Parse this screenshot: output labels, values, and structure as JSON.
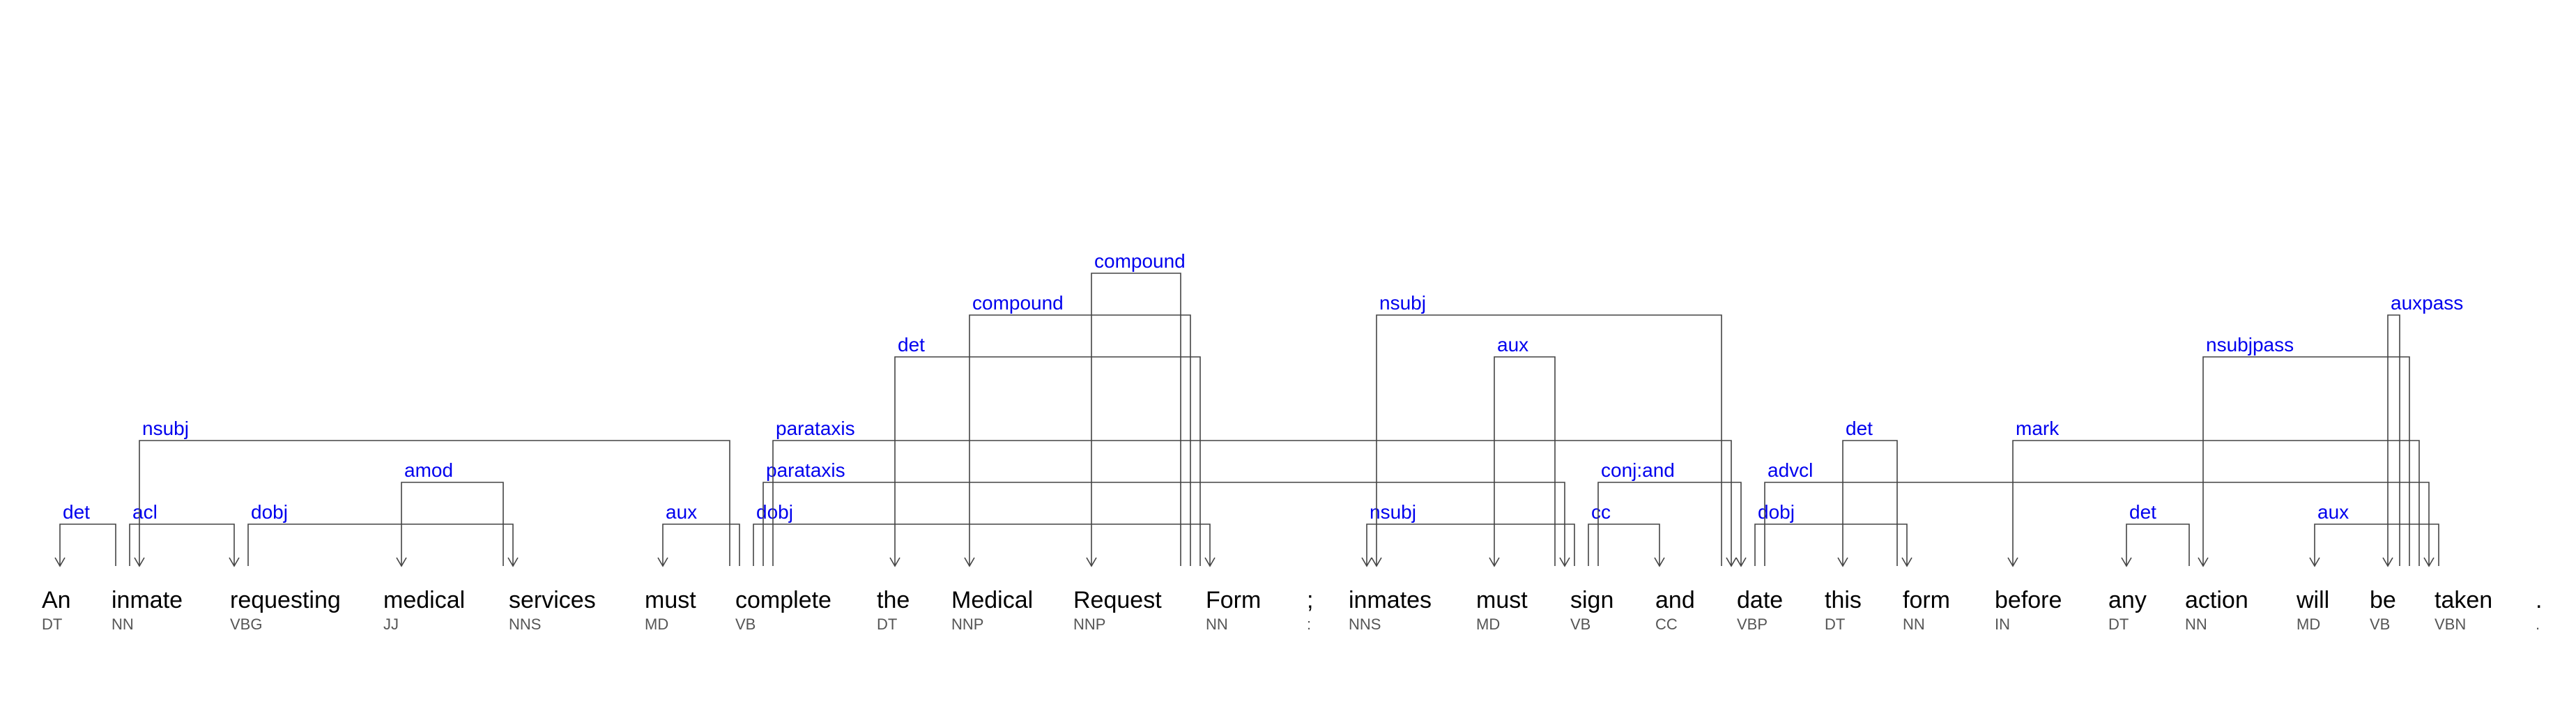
{
  "colors": {
    "relation_label": "#0000ee",
    "arc": "#444444",
    "word": "#000000",
    "tag": "#555555"
  },
  "tokens": [
    {
      "word": "An",
      "tag": "DT"
    },
    {
      "word": "inmate",
      "tag": "NN"
    },
    {
      "word": "requesting",
      "tag": "VBG"
    },
    {
      "word": "medical",
      "tag": "JJ"
    },
    {
      "word": "services",
      "tag": "NNS"
    },
    {
      "word": "must",
      "tag": "MD"
    },
    {
      "word": "complete",
      "tag": "VB"
    },
    {
      "word": "the",
      "tag": "DT"
    },
    {
      "word": "Medical",
      "tag": "NNP"
    },
    {
      "word": "Request",
      "tag": "NNP"
    },
    {
      "word": "Form",
      "tag": "NN"
    },
    {
      "word": ";",
      "tag": ":"
    },
    {
      "word": "inmates",
      "tag": "NNS"
    },
    {
      "word": "must",
      "tag": "MD"
    },
    {
      "word": "sign",
      "tag": "VB"
    },
    {
      "word": "and",
      "tag": "CC"
    },
    {
      "word": "date",
      "tag": "VBP"
    },
    {
      "word": "this",
      "tag": "DT"
    },
    {
      "word": "form",
      "tag": "NN"
    },
    {
      "word": "before",
      "tag": "IN"
    },
    {
      "word": "any",
      "tag": "DT"
    },
    {
      "word": "action",
      "tag": "NN"
    },
    {
      "word": "will",
      "tag": "MD"
    },
    {
      "word": "be",
      "tag": "VB"
    },
    {
      "word": "taken",
      "tag": "VBN"
    },
    {
      "word": ".",
      "tag": "."
    }
  ],
  "arcs": [
    {
      "label": "det",
      "head": 1,
      "dep": 0,
      "level": 1
    },
    {
      "label": "acl",
      "head": 1,
      "dep": 2,
      "level": 1
    },
    {
      "label": "dobj",
      "head": 2,
      "dep": 4,
      "level": 1
    },
    {
      "label": "amod",
      "head": 4,
      "dep": 3,
      "level": 2
    },
    {
      "label": "nsubj",
      "head": 6,
      "dep": 1,
      "level": 3
    },
    {
      "label": "aux",
      "head": 6,
      "dep": 5,
      "level": 1
    },
    {
      "label": "dobj",
      "head": 6,
      "dep": 10,
      "level": 1
    },
    {
      "label": "det",
      "head": 10,
      "dep": 7,
      "level": 5
    },
    {
      "label": "compound",
      "head": 10,
      "dep": 8,
      "level": 6
    },
    {
      "label": "compound",
      "head": 10,
      "dep": 9,
      "level": 7
    },
    {
      "label": "parataxis",
      "head": 6,
      "dep": 14,
      "level": 2
    },
    {
      "label": "parataxis",
      "head": 6,
      "dep": 16,
      "level": 3
    },
    {
      "label": "nsubj",
      "head": 14,
      "dep": 12,
      "level": 1
    },
    {
      "label": "aux",
      "head": 14,
      "dep": 13,
      "level": 5
    },
    {
      "label": "cc",
      "head": 14,
      "dep": 15,
      "level": 1
    },
    {
      "label": "conj:and",
      "head": 14,
      "dep": 16,
      "level": 2
    },
    {
      "label": "nsubj",
      "head": 16,
      "dep": 12,
      "level": 6
    },
    {
      "label": "dobj",
      "head": 16,
      "dep": 18,
      "level": 1
    },
    {
      "label": "det",
      "head": 18,
      "dep": 17,
      "level": 3
    },
    {
      "label": "advcl",
      "head": 16,
      "dep": 24,
      "level": 2
    },
    {
      "label": "mark",
      "head": 24,
      "dep": 19,
      "level": 3
    },
    {
      "label": "det",
      "head": 21,
      "dep": 20,
      "level": 1
    },
    {
      "label": "nsubjpass",
      "head": 24,
      "dep": 21,
      "level": 5
    },
    {
      "label": "aux",
      "head": 24,
      "dep": 22,
      "level": 1
    },
    {
      "label": "auxpass",
      "head": 24,
      "dep": 23,
      "level": 6
    },
    {
      "label": "compound",
      "head": 10,
      "dep": 9,
      "level": 7,
      "hidden": true
    }
  ]
}
